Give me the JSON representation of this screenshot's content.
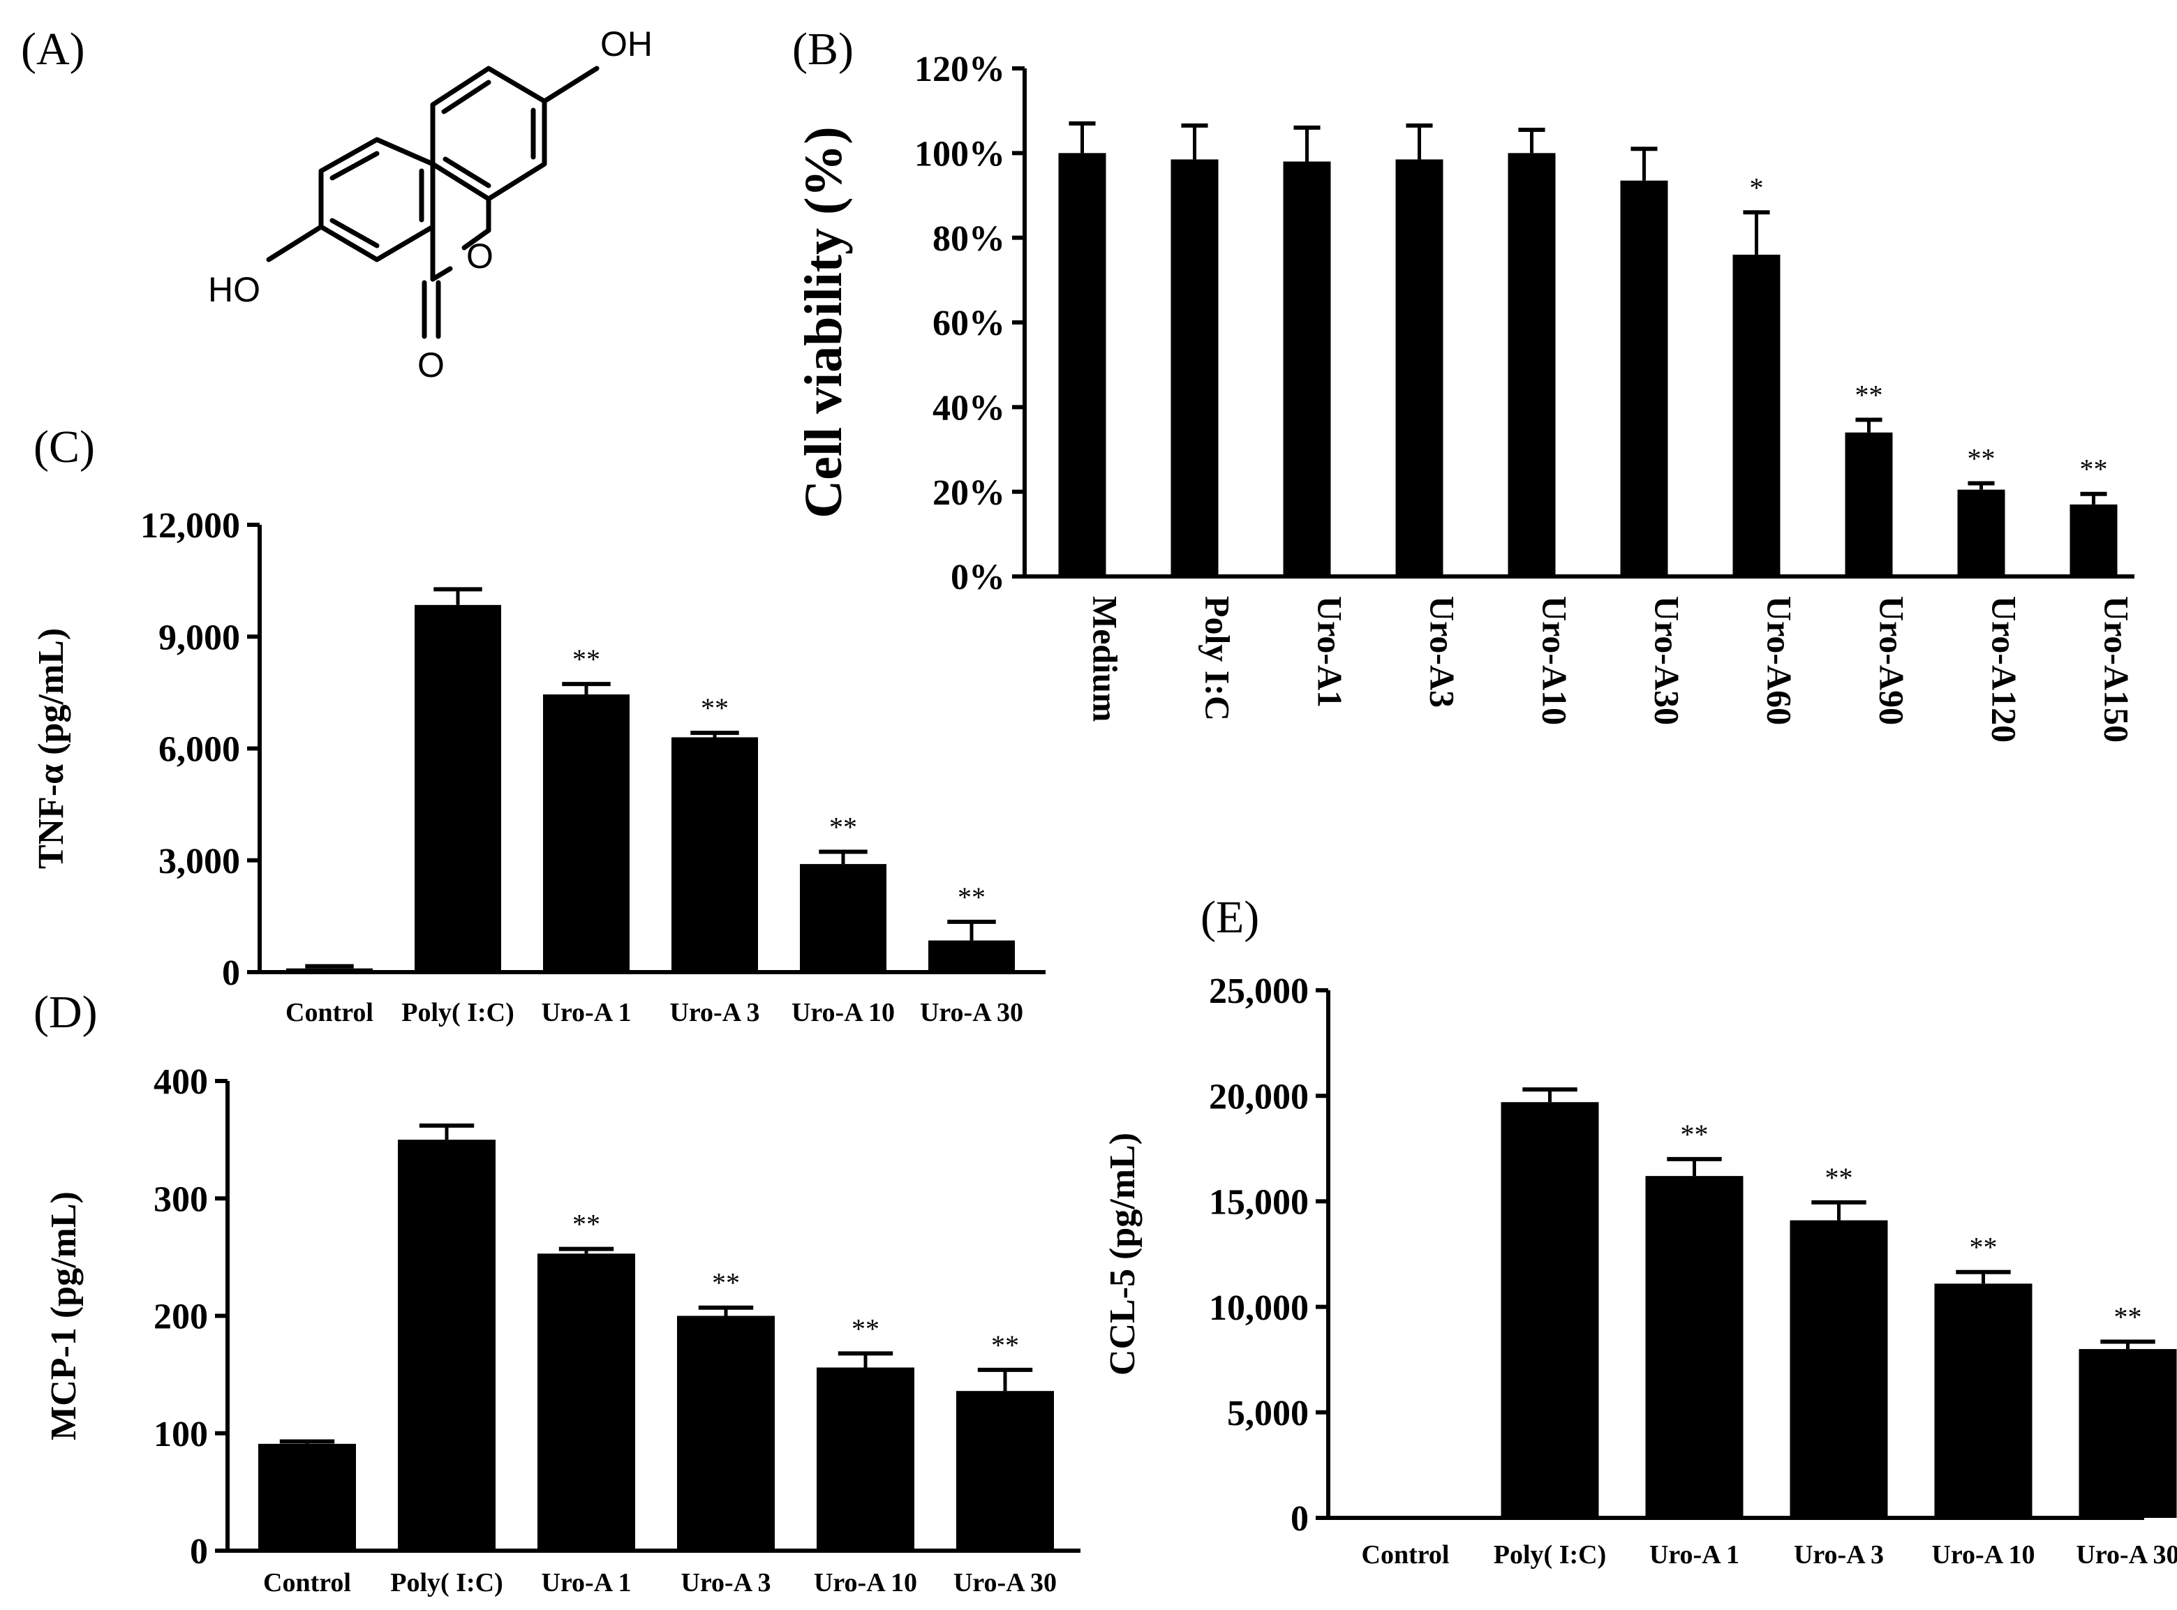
{
  "figure": {
    "labels": {
      "A": "(A)",
      "B": "(B)",
      "C": "(C)",
      "D": "(D)",
      "E": "(E)"
    },
    "structure": {
      "oh_top": "OH",
      "ho_left": "HO",
      "o_ring": "O",
      "o_carbonyl": "O"
    }
  },
  "chart_data": [
    {
      "id": "B",
      "type": "bar",
      "title": "",
      "ylabel": "Cell viability (%)",
      "xlabel": "",
      "ylim": [
        0,
        120
      ],
      "yticks": [
        0,
        20,
        40,
        60,
        80,
        100,
        120
      ],
      "ytick_labels": [
        "0%",
        "20%",
        "40%",
        "60%",
        "80%",
        "100%",
        "120%"
      ],
      "categories": [
        "Medium",
        "Poly I:C",
        "Uro-A1",
        "Uro-A3",
        "Uro-A10",
        "Uro-A30",
        "Uro-A60",
        "Uro-A90",
        "Uro-A120",
        "Uro-A150"
      ],
      "values": [
        100,
        98.5,
        98,
        98.5,
        100,
        93.5,
        76,
        34,
        20.5,
        17
      ],
      "errors": [
        7,
        8,
        8,
        8,
        5.5,
        7.5,
        10,
        3,
        1.5,
        2.5
      ],
      "significance": [
        "",
        "",
        "",
        "",
        "",
        "",
        "*",
        "**",
        "**",
        "**"
      ],
      "grid": false
    },
    {
      "id": "C",
      "type": "bar",
      "title": "",
      "ylabel": "TNF-α (pg/mL)",
      "xlabel": "",
      "ylim": [
        0,
        12000
      ],
      "yticks": [
        0,
        3000,
        6000,
        9000,
        12000
      ],
      "ytick_labels": [
        "0",
        "3,000",
        "6,000",
        "9,000",
        "12,000"
      ],
      "categories": [
        "Control",
        "Poly( I:C)",
        "Uro-A 1",
        "Uro-A 3",
        "Uro-A 10",
        "Uro-A 30"
      ],
      "values": [
        100,
        9850,
        7450,
        6300,
        2900,
        850
      ],
      "errors": [
        60,
        420,
        280,
        120,
        330,
        500
      ],
      "significance": [
        "",
        "",
        "**",
        "**",
        "**",
        "**"
      ],
      "grid": false
    },
    {
      "id": "D",
      "type": "bar",
      "title": "",
      "ylabel": "MCP-1 (pg/mL)",
      "xlabel": "",
      "ylim": [
        0,
        400
      ],
      "yticks": [
        0,
        100,
        200,
        300,
        400
      ],
      "ytick_labels": [
        "0",
        "100",
        "200",
        "300",
        "400"
      ],
      "categories": [
        "Control",
        "Poly( I:C)",
        "Uro-A 1",
        "Uro-A 3",
        "Uro-A 10",
        "Uro-A 30"
      ],
      "values": [
        91,
        350,
        253,
        200,
        156,
        136
      ],
      "errors": [
        2,
        12,
        4,
        7,
        12,
        18
      ],
      "significance": [
        "",
        "",
        "**",
        "**",
        "**",
        "**"
      ],
      "grid": false
    },
    {
      "id": "E",
      "type": "bar",
      "title": "",
      "ylabel": "CCL-5 (pg/mL)",
      "xlabel": "",
      "ylim": [
        0,
        25000
      ],
      "yticks": [
        0,
        5000,
        10000,
        15000,
        20000,
        25000
      ],
      "ytick_labels": [
        "0",
        "5,000",
        "10,000",
        "15,000",
        "20,000",
        "25,000"
      ],
      "categories": [
        "Control",
        "Poly( I:C)",
        "Uro-A 1",
        "Uro-A 3",
        "Uro-A 10",
        "Uro-A 30"
      ],
      "values": [
        0,
        19700,
        16200,
        14100,
        11100,
        8000
      ],
      "errors": [
        0,
        600,
        800,
        850,
        550,
        350
      ],
      "significance": [
        "",
        "",
        "**",
        "**",
        "**",
        "**"
      ],
      "grid": false
    }
  ]
}
